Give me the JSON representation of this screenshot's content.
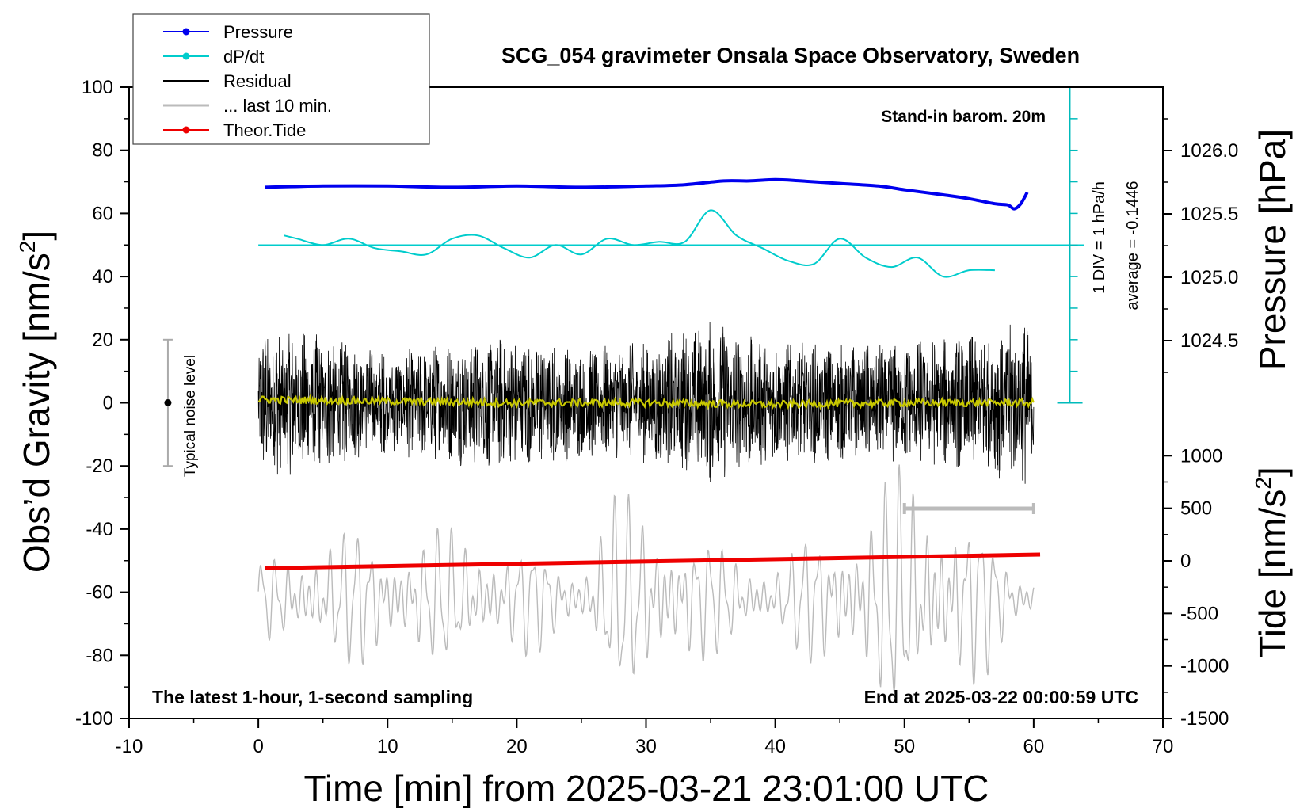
{
  "chart_data": {
    "type": "line",
    "title": "SCG_054 gravimeter Onsala Space Observatory, Sweden",
    "xlabel": "Time [min] from 2025-03-21 23:01:00 UTC",
    "ylabel_left": "Obs'd Gravity [nm/s²]",
    "ylabel_left_base": "Obs’d Gravity [nm/s",
    "ylabel_left_sup": "2",
    "ylabel_left_close": "]",
    "ylabel_right_pressure": "Pressure [hPa]",
    "ylabel_right_tide_base": "Tide [nm/s",
    "ylabel_right_tide_sup": "2",
    "ylabel_right_tide_close": "]",
    "xlim": [
      -10,
      70
    ],
    "ylim": [
      -100,
      100
    ],
    "xticks": [
      "-10",
      "0",
      "10",
      "20",
      "30",
      "40",
      "50",
      "60",
      "70"
    ],
    "yticks": [
      "100",
      "80",
      "60",
      "40",
      "20",
      "0",
      "-20",
      "-40",
      "-60",
      "-80",
      "-100"
    ],
    "pressure_axis": {
      "range_hPa": [
        1024.0,
        1026.5
      ],
      "ticks": [
        "1026.0",
        "1025.5",
        "1025.0",
        "1024.5"
      ]
    },
    "tide_axis": {
      "range": [
        -1500,
        1500
      ],
      "ticks": [
        "1000",
        "500",
        "0",
        "-500",
        "-1000",
        "-1500"
      ]
    },
    "annotations": {
      "barometer": "Stand-in barom. 20m",
      "div_note": "1 DIV = 1 hPa/h",
      "average_note": "average = -0.1446",
      "noise_label": "Typical noise level",
      "bottom_left": "The latest 1-hour, 1-second sampling",
      "bottom_right": "End at 2025-03-22 00:00:59 UTC"
    },
    "legend": {
      "position": "top-left",
      "entries": [
        {
          "label": "Pressure",
          "color": "#0000ee",
          "marker": true
        },
        {
          "label": "dP/dt",
          "color": "#00cccc",
          "marker": true
        },
        {
          "label": "Residual",
          "color": "#000000",
          "marker": false
        },
        {
          "label": "... last 10 min.",
          "color": "#bbbbbb",
          "marker": false
        },
        {
          "label": "Theor.Tide",
          "color": "#ee0000",
          "marker": true
        }
      ]
    },
    "series": [
      {
        "name": "Pressure",
        "color": "#0000ee",
        "axis": "pressure",
        "x": [
          0.5,
          5,
          10,
          15,
          20,
          25,
          30,
          33,
          36,
          38,
          40,
          42,
          45,
          48,
          50,
          53,
          55,
          57,
          58,
          58.5,
          59,
          59.5
        ],
        "values": [
          1025.71,
          1025.72,
          1025.72,
          1025.71,
          1025.72,
          1025.71,
          1025.72,
          1025.73,
          1025.76,
          1025.76,
          1025.77,
          1025.76,
          1025.74,
          1025.72,
          1025.69,
          1025.65,
          1025.62,
          1025.58,
          1025.57,
          1025.54,
          1025.58,
          1025.67
        ]
      },
      {
        "name": "dP/dt",
        "color": "#00cccc",
        "axis": "gravity",
        "baseline": 50,
        "x": [
          2,
          3,
          5,
          7,
          9,
          11,
          13,
          15,
          17,
          19,
          21,
          23,
          25,
          27,
          29,
          31,
          33,
          35,
          37,
          39,
          41,
          43,
          45,
          47,
          49,
          51,
          53,
          55,
          57
        ],
        "values": [
          53,
          52,
          50,
          52,
          49,
          48,
          47,
          52,
          53,
          49,
          46,
          50,
          47,
          52,
          50,
          51,
          51,
          61,
          53,
          49,
          45,
          44,
          52,
          46,
          43,
          46,
          40,
          42,
          42
        ]
      },
      {
        "name": "Residual",
        "color": "#000000",
        "axis": "gravity",
        "amplitude_envelope": {
          "x": [
            0,
            5,
            10,
            15,
            20,
            25,
            30,
            35,
            40,
            45,
            50,
            55,
            60
          ],
          "values": [
            22,
            20,
            15,
            18,
            20,
            16,
            18,
            24,
            18,
            17,
            18,
            20,
            25
          ]
        }
      },
      {
        "name": "Residual mean",
        "color": "#c8c800",
        "axis": "gravity",
        "x": [
          0,
          10,
          20,
          30,
          40,
          50,
          60
        ],
        "values": [
          1,
          0.5,
          0,
          0,
          -0.5,
          0,
          0
        ]
      },
      {
        "name": "... last 10 min.",
        "color": "#bbbbbb",
        "axis": "gravity",
        "center": -62,
        "amplitude_envelope": {
          "x": [
            0,
            5,
            10,
            17,
            25,
            27,
            31,
            35,
            40,
            44,
            49,
            52,
            56,
            59
          ],
          "values": [
            10,
            18,
            18,
            18,
            10,
            26,
            26,
            15,
            10,
            20,
            32,
            35,
            20,
            8
          ]
        }
      },
      {
        "name": "Theor.Tide",
        "color": "#ee0000",
        "axis": "tide",
        "x": [
          0.5,
          60.5
        ],
        "values": [
          -70,
          60
        ]
      }
    ],
    "last10_bar": {
      "x_start": 50,
      "x_end": 60,
      "y": -33.5
    },
    "noise_bar": {
      "x": -7,
      "center": 0,
      "halfwidth": 20
    }
  }
}
